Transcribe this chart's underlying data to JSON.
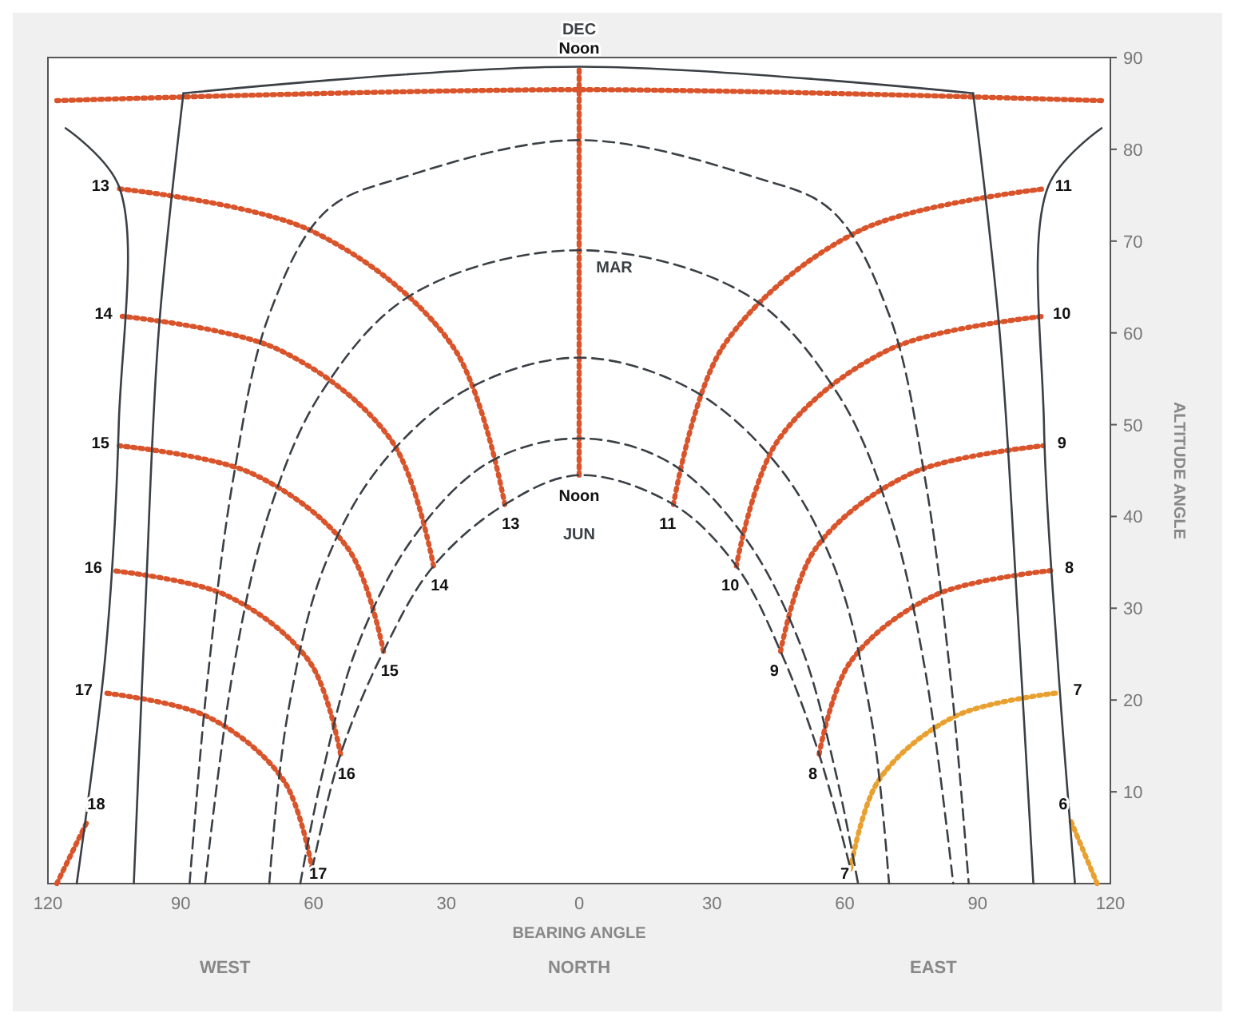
{
  "chart_data": {
    "type": "line",
    "xlabel": "BEARING ANGLE",
    "ylabel": "ALTITUDE ANGLE",
    "xlim": [
      -120,
      120
    ],
    "ylim": [
      0,
      90
    ],
    "xticks": [
      {
        "value": -120,
        "label": "120"
      },
      {
        "value": -90,
        "label": "90"
      },
      {
        "value": -60,
        "label": "60"
      },
      {
        "value": -30,
        "label": "30"
      },
      0,
      {
        "value": 30,
        "label": "30"
      },
      {
        "value": 60,
        "label": "60"
      },
      {
        "value": 90,
        "label": "90"
      },
      120
    ],
    "yticks": [
      10,
      20,
      30,
      40,
      50,
      60,
      70,
      80,
      90
    ],
    "series": [
      {
        "color": "#d9542b",
        "line_style": "dotted",
        "x": [
          -118,
          0,
          118
        ],
        "values": [
          85.3,
          86.5,
          85.3
        ]
      },
      {
        "name": "Noon",
        "color": "#d9542b",
        "line_style": "dotted",
        "x": [
          0,
          0
        ],
        "values": [
          44.5,
          89
        ]
      },
      {
        "name": "13",
        "color": "#d9542b",
        "line_style": "dotted",
        "x": [
          -16.8,
          -28.5,
          -60.4,
          -103.9
        ],
        "values": [
          41.3,
          58.5,
          71.1,
          75.7
        ]
      },
      {
        "name": "14",
        "color": "#d9542b",
        "line_style": "dotted",
        "x": [
          -32.9,
          -42.3,
          -68.0,
          -103.2
        ],
        "values": [
          34.6,
          48.2,
          58.2,
          61.8
        ]
      },
      {
        "name": "15",
        "color": "#d9542b",
        "line_style": "dotted",
        "x": [
          -44.2,
          -52.2,
          -74.0,
          -103.9
        ],
        "values": [
          25.3,
          36.5,
          44.7,
          47.7
        ]
      },
      {
        "name": "16",
        "color": "#d9542b",
        "line_style": "dotted",
        "x": [
          -53.9,
          -60.8,
          -79.7,
          -105.5
        ],
        "values": [
          14.1,
          24.1,
          31.4,
          34.1
        ]
      },
      {
        "name": "17",
        "color": "#d9542b",
        "line_style": "dotted",
        "x": [
          -60.3,
          -66.7,
          -84.0,
          -107.7
        ],
        "values": [
          1.6,
          11.2,
          18.2,
          20.8
        ]
      },
      {
        "name": "18",
        "color": "#d9542b",
        "line_style": "dotted",
        "x": [
          -118,
          -111
        ],
        "values": [
          0,
          6.9
        ]
      },
      {
        "name": "11",
        "color": "#d9542b",
        "line_style": "dotted",
        "x": [
          21.3,
          32.5,
          63.2,
          105.2
        ],
        "values": [
          41.3,
          58.5,
          71.1,
          75.7
        ]
      },
      {
        "name": "10",
        "color": "#d9542b",
        "line_style": "dotted",
        "x": [
          35.5,
          44.8,
          70.1,
          104.8
        ],
        "values": [
          34.6,
          48.2,
          58.2,
          61.8
        ]
      },
      {
        "name": "9",
        "color": "#d9542b",
        "line_style": "dotted",
        "x": [
          45.5,
          53.4,
          75.1,
          104.8
        ],
        "values": [
          25.3,
          36.5,
          44.7,
          47.7
        ]
      },
      {
        "name": "8",
        "color": "#d9542b",
        "line_style": "dotted",
        "x": [
          54.2,
          61.2,
          80.3,
          106.5
        ],
        "values": [
          14.1,
          24.1,
          31.4,
          34.1
        ]
      },
      {
        "name": "7",
        "color": "#e8a030",
        "line_style": "dotted",
        "x": [
          61.3,
          67.6,
          84.8,
          108.4
        ],
        "values": [
          1.6,
          11.2,
          18.2,
          20.8
        ]
      },
      {
        "name": "6",
        "color": "#e8a030",
        "line_style": "dotted",
        "x": [
          117,
          111
        ],
        "values": [
          0,
          6.9
        ]
      },
      {
        "name": "DEC",
        "color": "#3b4046",
        "line_style": "solid",
        "x": [
          -89.4,
          0,
          89
        ],
        "values": [
          86.1,
          89,
          86.1
        ]
      },
      {
        "color": "#3b4046",
        "line_style": "solid",
        "x": [
          -89.4,
          -95,
          -98,
          -100.6
        ],
        "values": [
          86.1,
          60,
          30,
          0
        ]
      },
      {
        "color": "#3b4046",
        "line_style": "solid",
        "x": [
          89,
          95,
          99,
          102.6
        ],
        "values": [
          86.1,
          60,
          30,
          0
        ]
      },
      {
        "color": "#3b4046",
        "line_style": "solid",
        "x": [
          -116,
          -104,
          -104,
          -107,
          -113.5
        ],
        "values": [
          82.3,
          76,
          50,
          25,
          0
        ]
      },
      {
        "color": "#3b4046",
        "line_style": "solid",
        "x": [
          118,
          106,
          105,
          108,
          112
        ],
        "values": [
          82.3,
          76,
          50,
          25,
          0
        ]
      },
      {
        "color": "#3b4046",
        "line_style": "dashed",
        "x": [
          -88,
          -84,
          -78,
          -70,
          -57.1,
          -39.4,
          0,
          39.4,
          57.1,
          70,
          78,
          84,
          88
        ],
        "values": [
          0,
          22,
          44.5,
          62,
          73.3,
          77,
          81,
          77,
          73.3,
          62,
          44.5,
          22,
          0
        ]
      },
      {
        "name": "MAR",
        "color": "#3b4046",
        "line_style": "dashed",
        "x": [
          -84.5,
          -78,
          -70,
          -58.1,
          -37.7,
          0,
          37.7,
          58.1,
          70,
          78,
          84.5
        ],
        "values": [
          0,
          23.7,
          40.5,
          53.6,
          64.2,
          69,
          64.2,
          53.6,
          40.5,
          23.7,
          0
        ]
      },
      {
        "color": "#3b4046",
        "line_style": "dashed",
        "x": [
          -70,
          -66,
          -57.7,
          -44.8,
          -25.5,
          0,
          25.5,
          44.8,
          57.7,
          66,
          70
        ],
        "values": [
          0,
          18,
          34.4,
          45.6,
          53.8,
          57.3,
          53.8,
          45.6,
          34.4,
          18,
          0
        ]
      },
      {
        "color": "#3b4046",
        "line_style": "dashed",
        "x": [
          -63,
          -58,
          -50,
          -37,
          -20,
          0,
          20,
          37,
          50,
          58,
          63
        ],
        "values": [
          0,
          12,
          26,
          38,
          46,
          48.5,
          46,
          38,
          26,
          12,
          0
        ]
      },
      {
        "name": "JUN",
        "color": "#3b4046",
        "line_style": "dashed",
        "x": [
          -60.3,
          -53.9,
          -44.2,
          -32.9,
          -16.8,
          0,
          21.3,
          35.5,
          45.5,
          54.2,
          61.3
        ],
        "values": [
          1.6,
          14.1,
          25.3,
          34.6,
          41.3,
          44.5,
          41.3,
          34.6,
          25.3,
          14.1,
          1.6
        ]
      }
    ],
    "annotations": [
      "WEST",
      "NORTH",
      "EAST"
    ]
  }
}
